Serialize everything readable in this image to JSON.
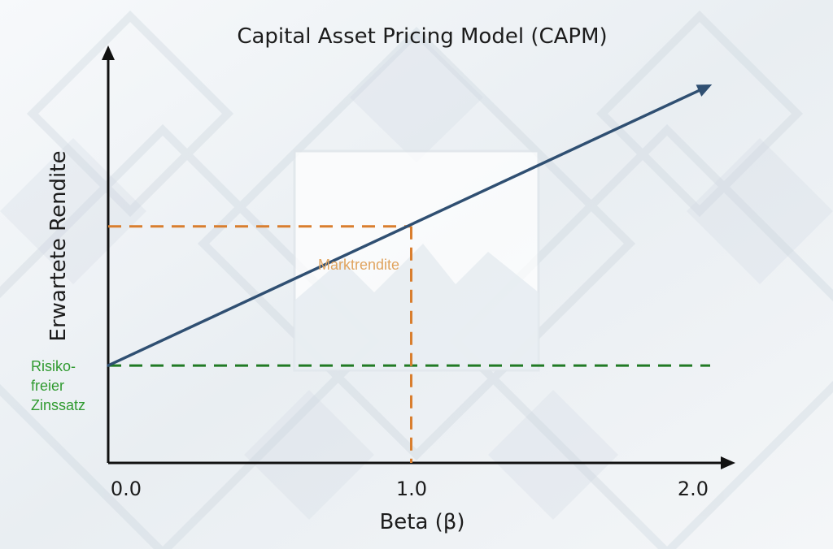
{
  "colors": {
    "axis": "#111111",
    "line": "#2f4f72",
    "market": "#d97e2e",
    "market_label": "#e0a460",
    "riskfree": "#207a24",
    "riskfree_label": "#2f9a2f"
  },
  "chart_data": {
    "type": "line",
    "title": "Capital Asset Pricing Model (CAPM)",
    "xlabel": "Beta (β)",
    "ylabel": "Erwartete Rendite",
    "xlim": [
      0,
      2
    ],
    "x_ticks": [
      "0.0",
      "1.0",
      "2.0"
    ],
    "x_tick_values": [
      0,
      1,
      2
    ],
    "grid": false,
    "series": [
      {
        "x": [
          0,
          2
        ],
        "y": [
          0.35,
          1.35
        ]
      }
    ],
    "annotations": {
      "market_return": {
        "label": "Marktrendite",
        "beta": 1.0,
        "y": 0.85
      },
      "risk_free_rate": {
        "label_lines": [
          "Risiko-",
          "freier",
          "Zinssatz"
        ],
        "y": 0.35
      }
    }
  }
}
